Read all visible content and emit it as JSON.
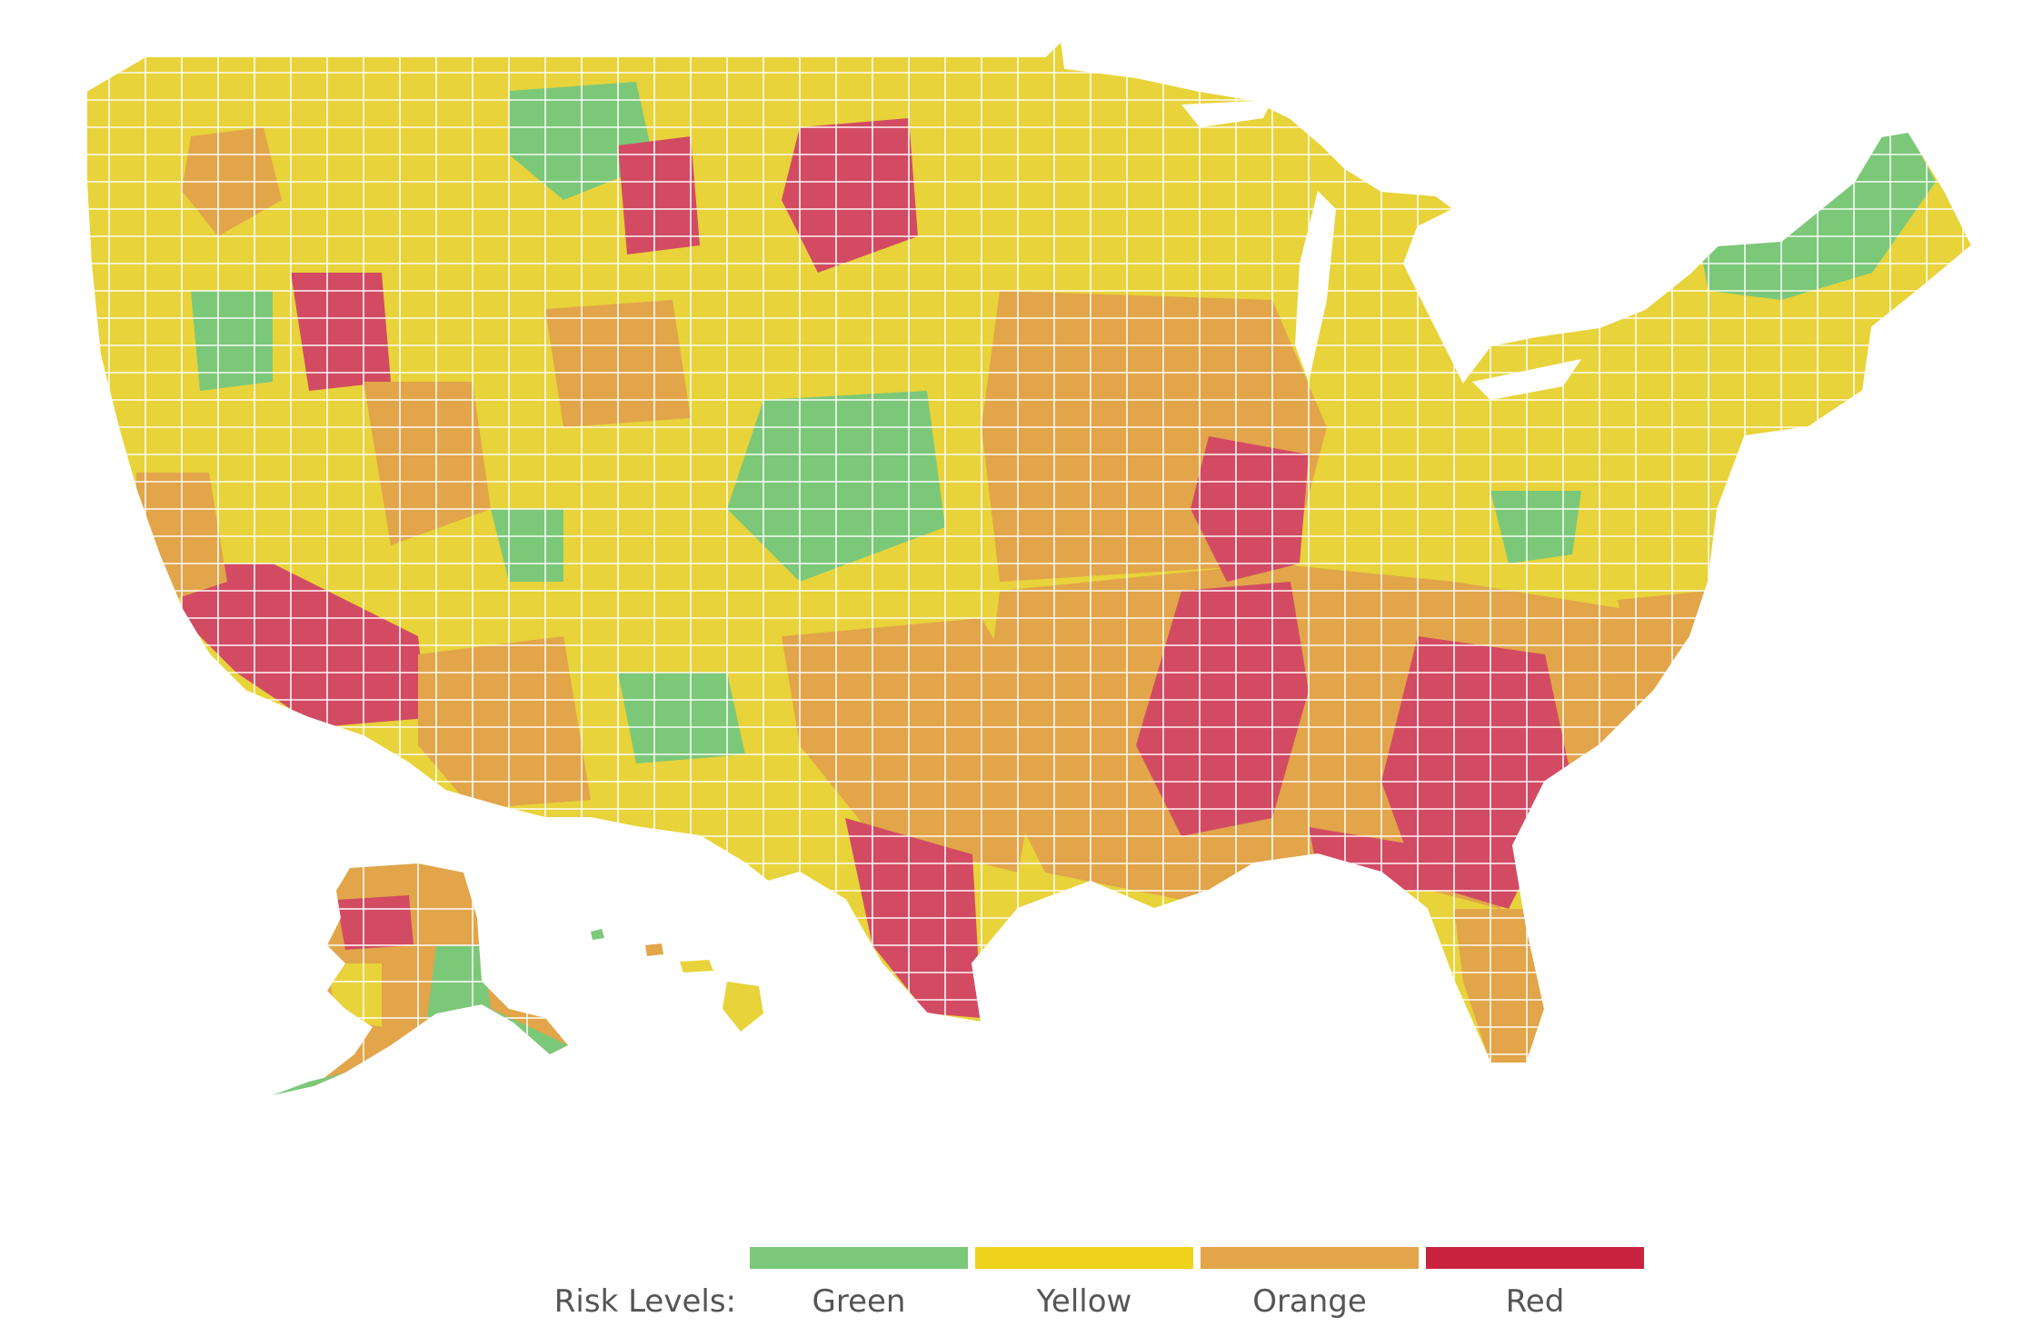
{
  "colors": {
    "green": "#7bc879",
    "yellow": "#e8d33a",
    "orange": "#e2a54a",
    "red": "#d24b63",
    "border": "#ffffff",
    "background": "#ffffff"
  },
  "legend": {
    "title": "Risk Levels:",
    "items": [
      {
        "label": "Green",
        "color": "#7bc879"
      },
      {
        "label": "Yellow",
        "color": "#eed21b"
      },
      {
        "label": "Orange",
        "color": "#e2a54a"
      },
      {
        "label": "Red",
        "color": "#c8233f"
      }
    ]
  }
}
